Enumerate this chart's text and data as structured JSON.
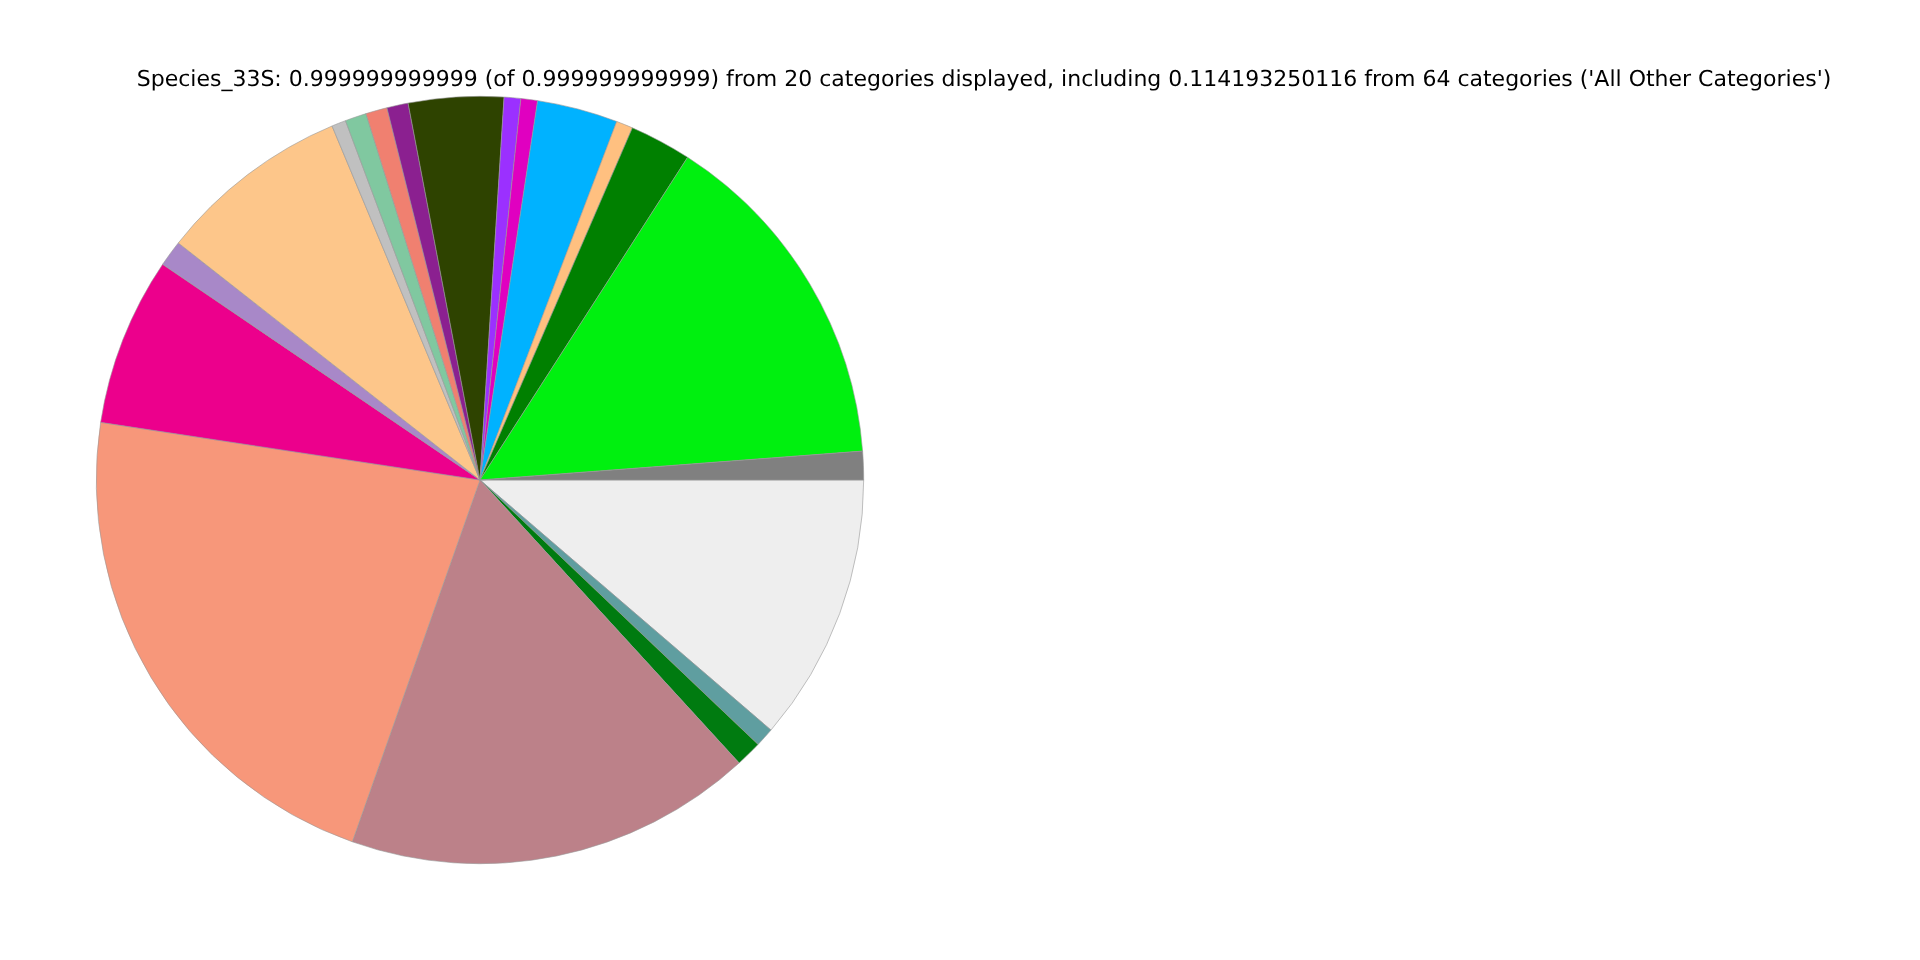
{
  "chart_data": {
    "type": "pie",
    "title": "Species_33S: 0.999999999999 (of 0.999999999999) from 20 categories displayed, including 0.114193250116 from 64 categories ('All Other Categories')",
    "categories": [
      null,
      null,
      null,
      null,
      null,
      null,
      null,
      null,
      null,
      null,
      null,
      null,
      null,
      null,
      null,
      null,
      null,
      null,
      null,
      null
    ],
    "values": [
      11.3,
      0.8,
      1.1,
      17.2,
      22.0,
      7.1,
      1.1,
      8.1,
      0.6,
      0.9,
      0.9,
      0.9,
      4.0,
      0.7,
      0.7,
      3.4,
      0.7,
      2.6,
      14.7,
      1.2
    ],
    "colors": [
      "#eeeeee",
      "#5f9ea0",
      "#007b10",
      "#bc8189",
      "#f7977a",
      "#ec008c",
      "#a888c8",
      "#fdc68a",
      "#c0c0c0",
      "#80c8a0",
      "#f08070",
      "#8b2090",
      "#2e4300",
      "#9b30ff",
      "#e000c0",
      "#00b2ff",
      "#ffc080",
      "#008000",
      "#00f00f",
      "#808080"
    ],
    "legend": false
  }
}
